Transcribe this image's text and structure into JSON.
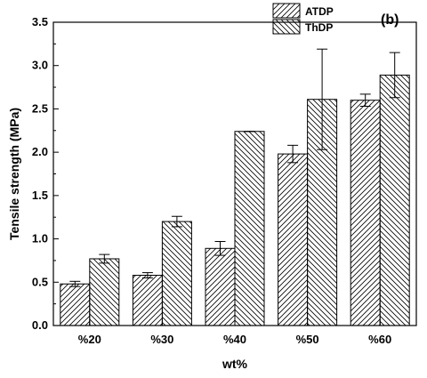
{
  "chart_data": {
    "type": "bar",
    "categories": [
      "%20",
      "%30",
      "%40",
      "%50",
      "%60"
    ],
    "series": [
      {
        "name": "ATDP",
        "values": [
          0.48,
          0.58,
          0.89,
          1.98,
          2.6
        ],
        "errors": [
          0.03,
          0.03,
          0.08,
          0.1,
          0.07
        ],
        "hatch": "forward"
      },
      {
        "name": "ThDP",
        "values": [
          0.77,
          1.2,
          2.24,
          2.61,
          2.89
        ],
        "errors": [
          0.05,
          0.06,
          0.0,
          0.58,
          0.26
        ],
        "hatch": "backward"
      }
    ],
    "xlabel": "wt%",
    "ylabel": "Tensile strength (MPa)",
    "ylim": [
      0,
      3.5
    ],
    "yticks": [
      "0.0",
      "0.5",
      "1.0",
      "1.5",
      "2.0",
      "2.5",
      "3.0",
      "3.5"
    ],
    "legend_position": "top-right",
    "annotation": "(b)",
    "grid": false
  }
}
